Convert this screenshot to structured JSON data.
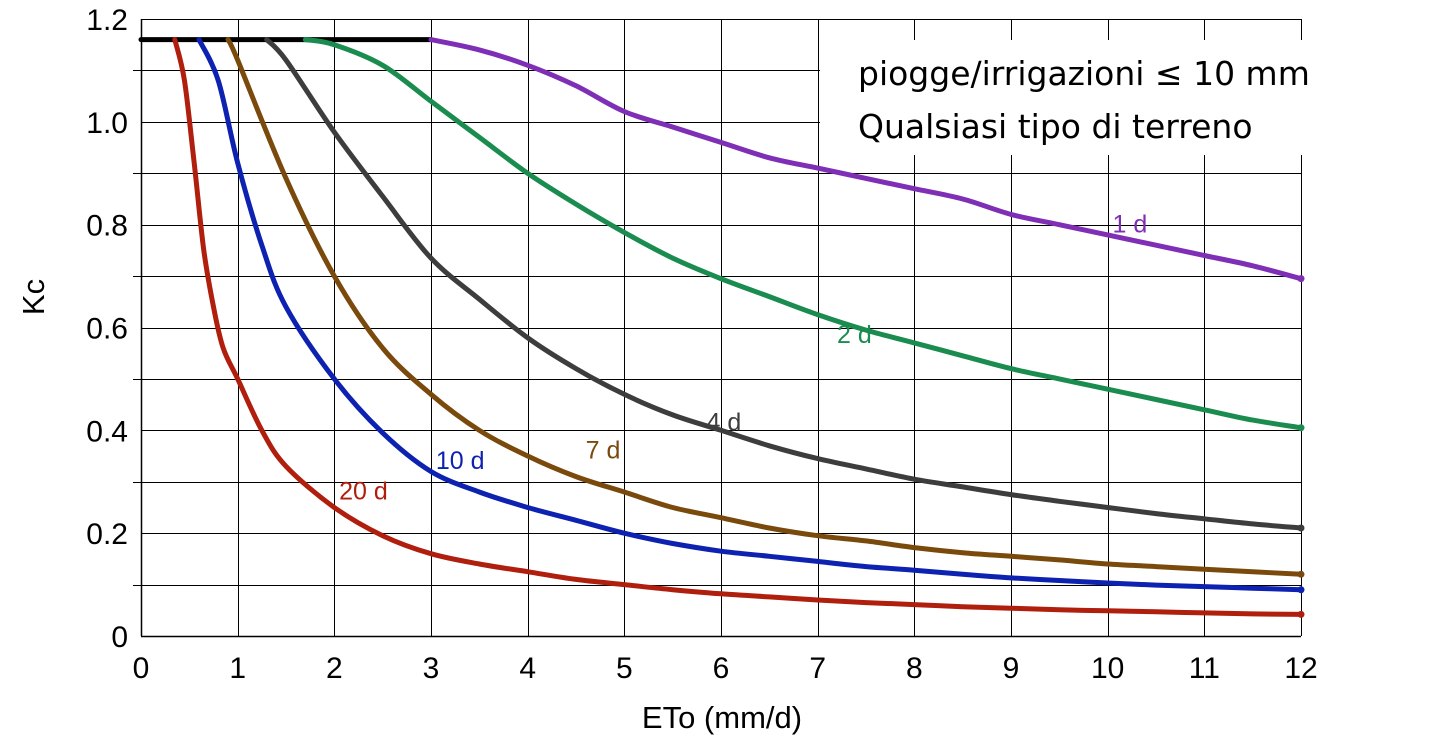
{
  "chart_data": {
    "type": "line",
    "xlabel": "ETo (mm/d)",
    "ylabel": "Kc",
    "xlim": [
      0,
      12
    ],
    "ylim": [
      0,
      1.2
    ],
    "x_ticks": [
      "0",
      "1",
      "2",
      "3",
      "4",
      "5",
      "6",
      "7",
      "8",
      "9",
      "10",
      "11",
      "12"
    ],
    "y_ticks": [
      "0",
      "0.2",
      "0.4",
      "0.6",
      "0.8",
      "1.0",
      "1.2"
    ],
    "grid": true,
    "annotation_lines": [
      "piogge/irrigazioni ≤ 10 mm",
      "Qualsiasi tipo di terreno"
    ],
    "plateau": {
      "color": "#000000",
      "x": [
        0,
        3
      ],
      "y": [
        1.16,
        1.16
      ]
    },
    "series": [
      {
        "name": "1 d",
        "color": "#7f2fb5",
        "x": [
          3.0,
          3.5,
          4.0,
          4.5,
          5.0,
          5.5,
          6.0,
          6.5,
          7.0,
          7.5,
          8.0,
          8.5,
          9.0,
          9.5,
          10.0,
          10.5,
          11.0,
          11.5,
          12.0
        ],
        "y": [
          1.16,
          1.14,
          1.11,
          1.07,
          1.02,
          0.99,
          0.96,
          0.93,
          0.91,
          0.89,
          0.87,
          0.85,
          0.82,
          0.8,
          0.78,
          0.76,
          0.74,
          0.72,
          0.695
        ]
      },
      {
        "name": "2 d",
        "color": "#1b8c4f",
        "x": [
          1.7,
          2.0,
          2.5,
          3.0,
          3.5,
          4.0,
          4.5,
          5.0,
          5.5,
          6.0,
          6.5,
          7.0,
          7.5,
          8.0,
          8.5,
          9.0,
          9.5,
          10.0,
          10.5,
          11.0,
          11.5,
          12.0
        ],
        "y": [
          1.16,
          1.15,
          1.11,
          1.04,
          0.97,
          0.9,
          0.84,
          0.785,
          0.735,
          0.695,
          0.66,
          0.625,
          0.595,
          0.57,
          0.545,
          0.52,
          0.5,
          0.48,
          0.46,
          0.44,
          0.42,
          0.405
        ]
      },
      {
        "name": "4 d",
        "color": "#3d3d3d",
        "x": [
          1.3,
          1.5,
          2.0,
          2.5,
          3.0,
          3.5,
          4.0,
          4.5,
          5.0,
          5.5,
          6.0,
          6.5,
          7.0,
          7.5,
          8.0,
          8.5,
          9.0,
          9.5,
          10.0,
          10.5,
          11.0,
          11.5,
          12.0
        ],
        "y": [
          1.16,
          1.12,
          0.98,
          0.855,
          0.735,
          0.655,
          0.58,
          0.52,
          0.47,
          0.43,
          0.4,
          0.37,
          0.345,
          0.325,
          0.305,
          0.29,
          0.275,
          0.262,
          0.25,
          0.238,
          0.228,
          0.218,
          0.21
        ]
      },
      {
        "name": "7 d",
        "color": "#7a4a0d",
        "x": [
          0.9,
          1.0,
          1.5,
          2.0,
          2.5,
          3.0,
          3.5,
          4.0,
          4.5,
          5.0,
          5.5,
          6.0,
          6.5,
          7.0,
          7.5,
          8.0,
          8.5,
          9.0,
          9.5,
          10.0,
          10.5,
          11.0,
          11.5,
          12.0
        ],
        "y": [
          1.16,
          1.12,
          0.89,
          0.7,
          0.56,
          0.47,
          0.4,
          0.35,
          0.31,
          0.28,
          0.25,
          0.23,
          0.21,
          0.195,
          0.185,
          0.172,
          0.162,
          0.155,
          0.148,
          0.14,
          0.135,
          0.13,
          0.125,
          0.12
        ]
      },
      {
        "name": "10 d",
        "color": "#0d22b0",
        "x": [
          0.6,
          0.8,
          1.0,
          1.25,
          1.5,
          2.0,
          2.5,
          3.0,
          3.5,
          4.0,
          4.5,
          5.0,
          5.5,
          6.0,
          6.5,
          7.0,
          7.5,
          8.0,
          8.5,
          9.0,
          9.5,
          10.0,
          10.5,
          11.0,
          11.5,
          12.0
        ],
        "y": [
          1.16,
          1.08,
          0.92,
          0.76,
          0.64,
          0.5,
          0.395,
          0.32,
          0.28,
          0.25,
          0.225,
          0.2,
          0.18,
          0.165,
          0.155,
          0.145,
          0.135,
          0.128,
          0.12,
          0.113,
          0.108,
          0.103,
          0.099,
          0.096,
          0.093,
          0.09
        ]
      },
      {
        "name": "20 d",
        "color": "#b01e0d",
        "x": [
          0.35,
          0.45,
          0.55,
          0.65,
          0.75,
          0.85,
          1.0,
          1.25,
          1.5,
          2.0,
          2.5,
          3.0,
          3.5,
          4.0,
          4.5,
          5.0,
          5.5,
          6.0,
          6.5,
          7.0,
          7.5,
          8.0,
          8.5,
          9.0,
          9.5,
          10.0,
          10.5,
          11.0,
          11.5,
          12.0
        ],
        "y": [
          1.16,
          1.08,
          0.92,
          0.75,
          0.64,
          0.56,
          0.5,
          0.4,
          0.33,
          0.25,
          0.195,
          0.16,
          0.14,
          0.125,
          0.11,
          0.1,
          0.09,
          0.082,
          0.076,
          0.07,
          0.065,
          0.061,
          0.057,
          0.054,
          0.051,
          0.049,
          0.047,
          0.045,
          0.043,
          0.042
        ]
      }
    ],
    "label_positions": [
      {
        "name": "1 d",
        "x": 10.05,
        "y": 0.785
      },
      {
        "name": "2 d",
        "x": 7.2,
        "y": 0.57
      },
      {
        "name": "4 d",
        "x": 5.85,
        "y": 0.4
      },
      {
        "name": "7 d",
        "x": 4.6,
        "y": 0.345
      },
      {
        "name": "10 d",
        "x": 3.05,
        "y": 0.325
      },
      {
        "name": "20 d",
        "x": 2.05,
        "y": 0.265
      }
    ]
  }
}
